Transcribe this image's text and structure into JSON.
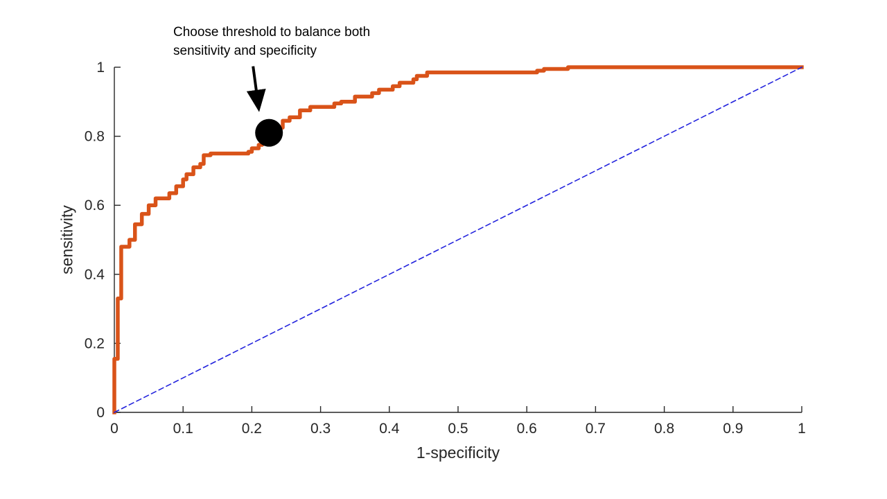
{
  "colors": {
    "background": "#ffffff",
    "axis": "#262626"
  },
  "chart_data": {
    "type": "line",
    "title": "",
    "xlabel": "1-specificity",
    "ylabel": "sensitivity",
    "xlim": [
      0,
      1
    ],
    "ylim": [
      0,
      1
    ],
    "grid": false,
    "legend_position": "none",
    "x_ticks": [
      0,
      0.1,
      0.2,
      0.3,
      0.4,
      0.5,
      0.6,
      0.7,
      0.8,
      0.9,
      1
    ],
    "x_tick_labels": [
      "0",
      "0.1",
      "0.2",
      "0.3",
      "0.4",
      "0.5",
      "0.6",
      "0.7",
      "0.8",
      "0.9",
      "1"
    ],
    "y_ticks": [
      0,
      0.2,
      0.4,
      0.6,
      0.8,
      1
    ],
    "y_tick_labels": [
      "0",
      "0.2",
      "0.4",
      "0.6",
      "0.8",
      "1"
    ],
    "series": [
      {
        "name": "roc-curve",
        "type": "step-line",
        "color": "#d95319",
        "width": 5.5,
        "dash": null,
        "points": [
          [
            0,
            0
          ],
          [
            0,
            0.155
          ],
          [
            0.005,
            0.155
          ],
          [
            0.005,
            0.33
          ],
          [
            0.01,
            0.33
          ],
          [
            0.01,
            0.48
          ],
          [
            0.022,
            0.48
          ],
          [
            0.022,
            0.5
          ],
          [
            0.03,
            0.5
          ],
          [
            0.03,
            0.545
          ],
          [
            0.04,
            0.545
          ],
          [
            0.04,
            0.575
          ],
          [
            0.05,
            0.575
          ],
          [
            0.05,
            0.6
          ],
          [
            0.06,
            0.6
          ],
          [
            0.06,
            0.62
          ],
          [
            0.08,
            0.62
          ],
          [
            0.08,
            0.635
          ],
          [
            0.09,
            0.635
          ],
          [
            0.09,
            0.655
          ],
          [
            0.1,
            0.655
          ],
          [
            0.1,
            0.675
          ],
          [
            0.105,
            0.675
          ],
          [
            0.105,
            0.69
          ],
          [
            0.115,
            0.69
          ],
          [
            0.115,
            0.71
          ],
          [
            0.125,
            0.71
          ],
          [
            0.125,
            0.72
          ],
          [
            0.13,
            0.72
          ],
          [
            0.13,
            0.745
          ],
          [
            0.14,
            0.745
          ],
          [
            0.14,
            0.75
          ],
          [
            0.195,
            0.75
          ],
          [
            0.195,
            0.755
          ],
          [
            0.2,
            0.755
          ],
          [
            0.2,
            0.765
          ],
          [
            0.21,
            0.765
          ],
          [
            0.21,
            0.775
          ],
          [
            0.215,
            0.775
          ],
          [
            0.215,
            0.79
          ],
          [
            0.235,
            0.79
          ],
          [
            0.235,
            0.825
          ],
          [
            0.245,
            0.825
          ],
          [
            0.245,
            0.845
          ],
          [
            0.255,
            0.845
          ],
          [
            0.255,
            0.855
          ],
          [
            0.27,
            0.855
          ],
          [
            0.27,
            0.875
          ],
          [
            0.285,
            0.875
          ],
          [
            0.285,
            0.885
          ],
          [
            0.32,
            0.885
          ],
          [
            0.32,
            0.895
          ],
          [
            0.33,
            0.895
          ],
          [
            0.33,
            0.9
          ],
          [
            0.35,
            0.9
          ],
          [
            0.35,
            0.915
          ],
          [
            0.375,
            0.915
          ],
          [
            0.375,
            0.925
          ],
          [
            0.385,
            0.925
          ],
          [
            0.385,
            0.935
          ],
          [
            0.405,
            0.935
          ],
          [
            0.405,
            0.945
          ],
          [
            0.415,
            0.945
          ],
          [
            0.415,
            0.955
          ],
          [
            0.435,
            0.955
          ],
          [
            0.435,
            0.965
          ],
          [
            0.44,
            0.965
          ],
          [
            0.44,
            0.975
          ],
          [
            0.455,
            0.975
          ],
          [
            0.455,
            0.985
          ],
          [
            0.615,
            0.985
          ],
          [
            0.615,
            0.99
          ],
          [
            0.625,
            0.99
          ],
          [
            0.625,
            0.995
          ],
          [
            0.66,
            0.995
          ],
          [
            0.66,
            1
          ],
          [
            1,
            1
          ]
        ]
      },
      {
        "name": "chance-diagonal",
        "type": "line",
        "color": "#2222dd",
        "width": 1.6,
        "dash": "7 5",
        "points": [
          [
            0,
            0
          ],
          [
            1,
            1
          ]
        ]
      }
    ],
    "marker": {
      "name": "threshold-point",
      "x": 0.225,
      "y": 0.81,
      "color": "#000000",
      "radius_px": 20
    },
    "annotation": {
      "text": "Choose threshold to balance both\nsensitivity and specificity",
      "arrow_color": "#000000"
    }
  }
}
